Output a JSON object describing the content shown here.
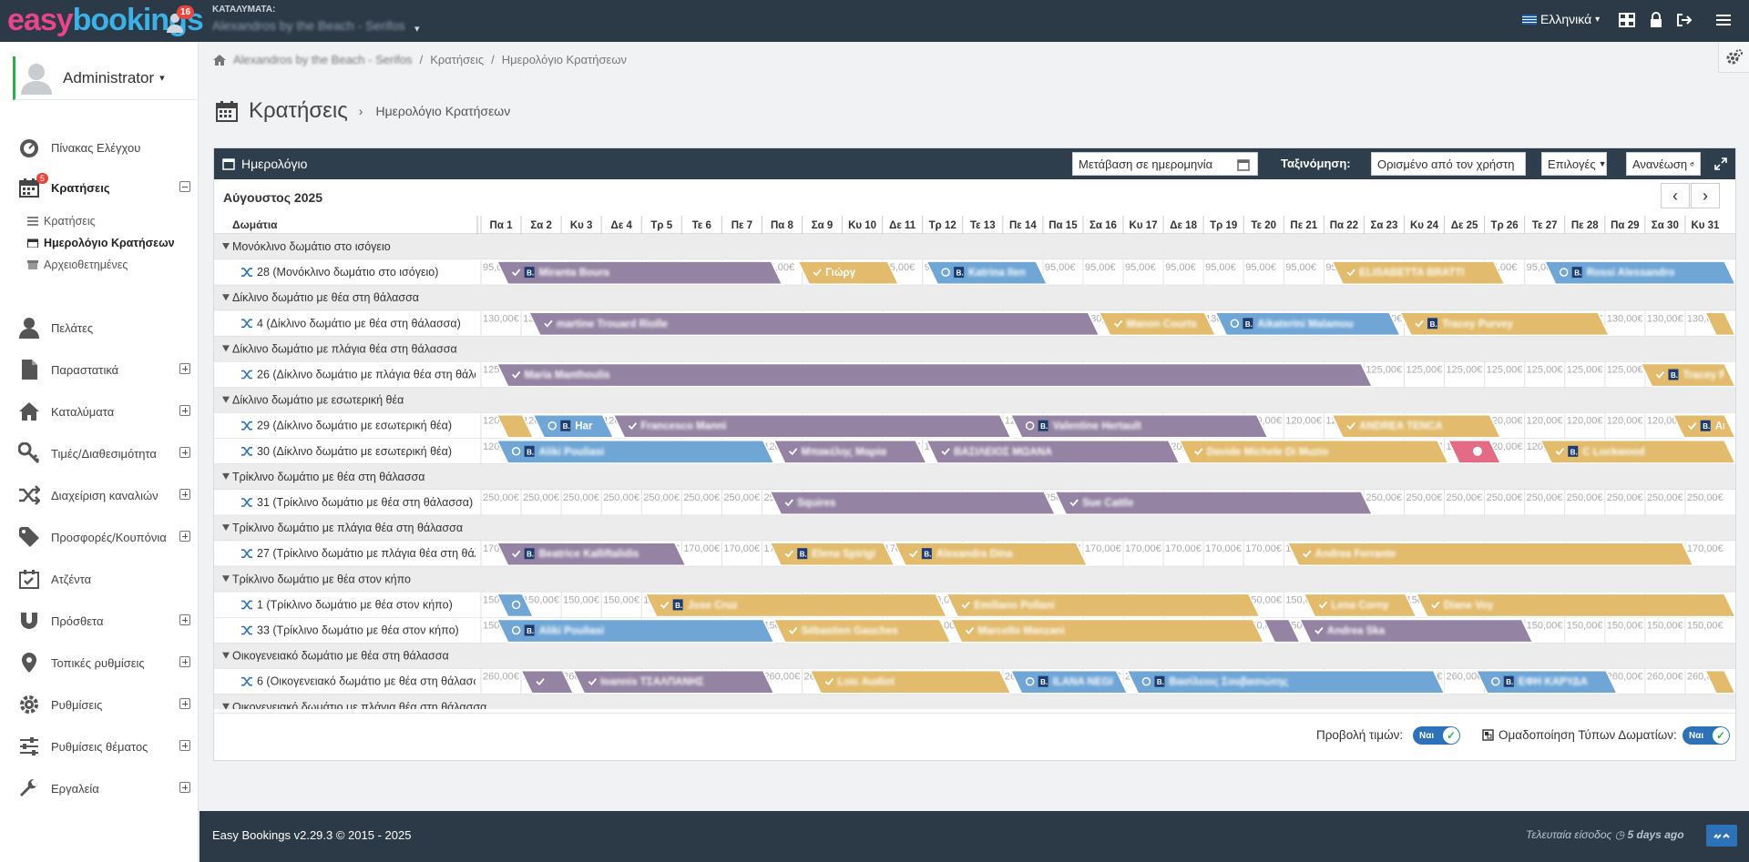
{
  "topbar": {
    "notifications": "16",
    "property_label": "ΚΑΤΑΛΥΜΑΤΑ:",
    "property_name": "Alexandros by the Beach - Serifos",
    "language": "Ελληνικά"
  },
  "sidebar": {
    "user": "Administrator",
    "items": [
      {
        "label": "Πίνακας Ελέγχου",
        "icon": "dashboard-icon"
      },
      {
        "label": "Κρατήσεις",
        "icon": "calendar-icon",
        "badge": "5"
      },
      {
        "label": "Πελάτες",
        "icon": "user-icon"
      },
      {
        "label": "Παραστατικά",
        "icon": "file-icon"
      },
      {
        "label": "Καταλύματα",
        "icon": "home-icon"
      },
      {
        "label": "Τιμές/Διαθεσιμότητα",
        "icon": "key-icon"
      },
      {
        "label": "Διαχείριση καναλιών",
        "icon": "shuffle-icon"
      },
      {
        "label": "Προσφορές/Κουπόνια",
        "icon": "tag-icon"
      },
      {
        "label": "Ατζέντα",
        "icon": "calendar-check-icon"
      },
      {
        "label": "Πρόσθετα",
        "icon": "magnet-icon"
      },
      {
        "label": "Τοπικές ρυθμίσεις",
        "icon": "map-marker-icon"
      },
      {
        "label": "Ρυθμίσεις",
        "icon": "gear-icon"
      },
      {
        "label": "Ρυθμίσεις θέματος",
        "icon": "sliders-icon"
      },
      {
        "label": "Εργαλεία",
        "icon": "wrench-icon"
      }
    ],
    "subitems": [
      "Κρατήσεις",
      "Ημερολόγιο Κρατήσεων",
      "Αρχειοθετημένες"
    ]
  },
  "breadcrumb": [
    "Alexandros by the Beach - Serifos",
    "Κρατήσεις",
    "Ημερολόγιο Κρατήσεων"
  ],
  "heading": {
    "title": "Κρατήσεις",
    "subtitle": "Ημερολόγιο Κρατήσεων"
  },
  "panel": {
    "title": "Ημερολόγιο",
    "goto_date": "Μετάβαση σε ημερομηνία",
    "sort_label": "Ταξινόμηση:",
    "sort_value": "Ορισμένο από τον χρήστη",
    "options": "Επιλογές",
    "refresh": "Ανανέωση",
    "month": "Αύγουστος 2025",
    "rooms_header": "Δωμάτια"
  },
  "days": [
    "Πα 1",
    "Σα 2",
    "Κυ 3",
    "Δε 4",
    "Τρ 5",
    "Τε 6",
    "Πε 7",
    "Πα 8",
    "Σα 9",
    "Κυ 10",
    "Δε 11",
    "Τρ 12",
    "Τε 13",
    "Πε 14",
    "Πα 15",
    "Σα 16",
    "Κυ 17",
    "Δε 18",
    "Τρ 19",
    "Τε 20",
    "Πε 21",
    "Πα 22",
    "Σα 23",
    "Κυ 24",
    "Δε 25",
    "Τρ 26",
    "Τε 27",
    "Πε 28",
    "Πα 29",
    "Σα 30",
    "Κυ 31"
  ],
  "rows": [
    {
      "type": "group",
      "label": "Μονόκλινο δωμάτιο στο ισόγειο"
    },
    {
      "type": "room",
      "label": "28 (Μονόκλινο δωμάτιο στο ισόγειο)",
      "price": "95,00€",
      "bookings": [
        {
          "start": 0.4,
          "end": 7.5,
          "color": "#9483a3",
          "label": "Miranta Boura",
          "b": true,
          "blur": true
        },
        {
          "start": 7.9,
          "end": 10.4,
          "color": "#e2bb6c",
          "label": "Γιώργ"
        },
        {
          "start": 11.1,
          "end": 14.1,
          "color": "#6fa6d6",
          "label": "Katrina Ilen",
          "b": true,
          "clock": true,
          "blur": true
        },
        {
          "start": 21.2,
          "end": 25.5,
          "color": "#e2bb6c",
          "label": "ELISABETTA BRATTI",
          "blur": true
        },
        {
          "start": 26.5,
          "end": 31.8,
          "color": "#6fa6d6",
          "label": "Rossi Alessandro",
          "b": true,
          "clock": true,
          "blur": true
        }
      ]
    },
    {
      "type": "group",
      "label": "Δίκλινο δωμάτιο με θέα στη θάλασσα"
    },
    {
      "type": "room",
      "label": "4 (Δίκλινο δωμάτιο με θέα στη θάλασσα)",
      "price": "130,00€",
      "bookings": [
        {
          "start": 1.2,
          "end": 15.4,
          "color": "#9483a3",
          "label": "martine Trouard Riolle",
          "blur": true
        },
        {
          "start": 15.4,
          "end": 18.3,
          "color": "#e2bb6c",
          "label": "Manon Courts",
          "blur": true
        },
        {
          "start": 18.3,
          "end": 22.9,
          "color": "#6fa6d6",
          "label": "Aikaterini Malamou",
          "b": true,
          "clock": true,
          "blur": true
        },
        {
          "start": 22.9,
          "end": 28.1,
          "color": "#e2bb6c",
          "label": "Tracey Purvey",
          "b": true,
          "blur": true
        },
        {
          "start": 30.5,
          "end": 31.8,
          "color": "#e2bb6c",
          "label": ""
        }
      ]
    },
    {
      "type": "group",
      "label": "Δίκλινο δωμάτιο με πλάγια θέα στη θάλασσα"
    },
    {
      "type": "room",
      "label": "26 (Δίκλινο δωμάτιο με πλάγια θέα στη θάλασσα)",
      "price": "125,00€",
      "bookings": [
        {
          "start": 0.4,
          "end": 22.2,
          "color": "#9483a3",
          "label": "Maria Manthoulis",
          "blur": true
        },
        {
          "start": 28.9,
          "end": 31.8,
          "color": "#e2bb6c",
          "label": "Tracey Purvey",
          "b": true,
          "blur": true
        }
      ]
    },
    {
      "type": "group",
      "label": "Δίκλινο δωμάτιο με εσωτερική θέα"
    },
    {
      "type": "room",
      "label": "29 (Δίκλινο δωμάτιο με εσωτερική θέα)",
      "price": "120,00€",
      "bookings": [
        {
          "start": 0.4,
          "end": 1.3,
          "color": "#e2bb6c",
          "label": ""
        },
        {
          "start": 1.3,
          "end": 3.3,
          "color": "#6fa6d6",
          "label": "Har",
          "b": true,
          "clock": true
        },
        {
          "start": 3.3,
          "end": 13.2,
          "color": "#9483a3",
          "label": "Francesco Manni",
          "blur": true
        },
        {
          "start": 13.2,
          "end": 19.6,
          "color": "#9483a3",
          "label": "Valentine Hertault",
          "b": true,
          "clock": true,
          "blur": true
        },
        {
          "start": 21.2,
          "end": 25.4,
          "color": "#e2bb6c",
          "label": "ANDREA TENCA",
          "blur": true
        },
        {
          "start": 29.7,
          "end": 31.8,
          "color": "#e2bb6c",
          "label": "Amoo",
          "b": true
        }
      ]
    },
    {
      "type": "room",
      "label": "30 (Δίκλινο δωμάτιο με εσωτερική θέα)",
      "price": "120,00€",
      "bookings": [
        {
          "start": 0.4,
          "end": 7.3,
          "color": "#6fa6d6",
          "label": "Aliki Pouliasi",
          "b": true,
          "clock": true,
          "blur": true
        },
        {
          "start": 7.3,
          "end": 11.1,
          "color": "#9483a3",
          "label": "Μπακέλης Μαρία",
          "blur": true
        },
        {
          "start": 11.1,
          "end": 17.4,
          "color": "#9483a3",
          "label": "ΒΑΣΙΛΕΙΟΣ ΜΩΑΝΑ",
          "blur": true
        },
        {
          "start": 17.4,
          "end": 24.1,
          "color": "#e2bb6c",
          "label": "Davide Michele Di Muzio",
          "blur": true
        },
        {
          "start": 24.1,
          "end": 25.4,
          "color": "#e46b86",
          "label": "",
          "cancel": true
        },
        {
          "start": 26.4,
          "end": 31.8,
          "color": "#e2bb6c",
          "label": "C Lockwood",
          "b": true,
          "blur": true
        }
      ]
    },
    {
      "type": "group",
      "label": "Τρίκλινο δωμάτιο με θέα στη θάλασσα"
    },
    {
      "type": "room",
      "label": "31 (Τρίκλινο δωμάτιο με θέα στη θάλασσα)",
      "price": "250,00€",
      "bookings": [
        {
          "start": 7.2,
          "end": 14.3,
          "color": "#9483a3",
          "label": "Squires",
          "blur": true
        },
        {
          "start": 14.3,
          "end": 22.2,
          "color": "#9483a3",
          "label": "Sue Cattle",
          "blur": true
        }
      ]
    },
    {
      "type": "group",
      "label": "Τρίκλινο δωμάτιο με πλάγια θέα στη θάλασσα"
    },
    {
      "type": "room",
      "label": "27 (Τρίκλινο δωμάτιο με πλάγια θέα στη θάλασσα)",
      "price": "170,00€",
      "bookings": [
        {
          "start": 0.4,
          "end": 5.1,
          "color": "#9483a3",
          "label": "Beatrice Kalliftalidis",
          "b": true,
          "blur": true
        },
        {
          "start": 7.2,
          "end": 10.3,
          "color": "#e2bb6c",
          "label": "Elena Spirigi",
          "b": true,
          "blur": true
        },
        {
          "start": 10.3,
          "end": 15.1,
          "color": "#e2bb6c",
          "label": "Alexandra Dina",
          "b": true,
          "blur": true
        },
        {
          "start": 20.1,
          "end": 30.2,
          "color": "#e2bb6c",
          "label": "Andrea Ferrante",
          "blur": true
        }
      ]
    },
    {
      "type": "group",
      "label": "Τρίκλινο δωμάτιο με θέα στον κήπο"
    },
    {
      "type": "room",
      "label": "1 (Τρίκλινο δωμάτιο με θέα στον κήπο)",
      "price": "150,00€",
      "bookings": [
        {
          "start": 0.4,
          "end": 1.3,
          "color": "#6fa6d6",
          "label": "",
          "clock": true
        },
        {
          "start": 4.1,
          "end": 11.6,
          "color": "#e2bb6c",
          "label": "Jose Cruz",
          "b": true,
          "blur": true
        },
        {
          "start": 11.6,
          "end": 19.4,
          "color": "#e2bb6c",
          "label": "Emiliano Pollani",
          "blur": true
        },
        {
          "start": 20.5,
          "end": 23.3,
          "color": "#e2bb6c",
          "label": "Lena Corny",
          "blur": true
        },
        {
          "start": 23.3,
          "end": 31.8,
          "color": "#e2bb6c",
          "label": "Diane Voy",
          "blur": true
        }
      ]
    },
    {
      "type": "room",
      "label": "33 (Τρίκλινο δωμάτιο με θέα στον κήπο)",
      "price": "150,00€",
      "bookings": [
        {
          "start": 0.4,
          "end": 7.3,
          "color": "#6fa6d6",
          "label": "Aliki Pouliasi",
          "b": true,
          "clock": true,
          "blur": true
        },
        {
          "start": 7.3,
          "end": 11.7,
          "color": "#e2bb6c",
          "label": "Sébastien Gauches",
          "blur": true
        },
        {
          "start": 11.7,
          "end": 19.5,
          "color": "#e2bb6c",
          "label": "Marcello Manzani",
          "blur": true
        },
        {
          "start": 19.5,
          "end": 20.4,
          "color": "#9483a3",
          "label": ""
        },
        {
          "start": 20.4,
          "end": 26.2,
          "color": "#9483a3",
          "label": "Andrea Ska",
          "blur": true
        }
      ]
    },
    {
      "type": "group",
      "label": "Οικογενειακό δωμάτιο με θέα στη θάλασσα"
    },
    {
      "type": "room",
      "label": "6 (Οικογενειακό δωμάτιο με θέα στη θάλασσα)",
      "price": "260,00€",
      "bookings": [
        {
          "start": 1.0,
          "end": 2.3,
          "color": "#9483a3",
          "label": ""
        },
        {
          "start": 2.3,
          "end": 7.3,
          "color": "#9483a3",
          "label": "Ioannis ΤΣΑΛΠΑΝΗΣ",
          "blur": true
        },
        {
          "start": 8.2,
          "end": 13.2,
          "color": "#e2bb6c",
          "label": "Loic Audiot",
          "blur": true
        },
        {
          "start": 13.2,
          "end": 16.1,
          "color": "#6fa6d6",
          "label": "ILANA NEGI",
          "b": true,
          "clock": true,
          "blur": true
        },
        {
          "start": 16.1,
          "end": 24.0,
          "color": "#6fa6d6",
          "label": "Βασίλειος Σουβασιώτης",
          "b": true,
          "clock": true,
          "blur": true
        },
        {
          "start": 24.8,
          "end": 28.3,
          "color": "#6fa6d6",
          "label": "ΕΦΗ ΚΑΡΥΔΑ",
          "b": true,
          "clock": true,
          "blur": true
        },
        {
          "start": 30.5,
          "end": 31.8,
          "color": "#e2bb6c",
          "label": ""
        }
      ]
    },
    {
      "type": "group",
      "label": "Οικογενειακό δωμάτιο με πλάγια θέα στη θάλασσα"
    }
  ],
  "footer_toggles": {
    "prices_label": "Προβολή τιμών:",
    "grouping_label": "Ομαδοποίηση Τύπων Δωματίων:",
    "yes": "Ναι"
  },
  "page_footer": {
    "version": "Easy Bookings v2.29.3 © 2015 - 2025",
    "last_login_label": "Τελευταία είσοδος",
    "last_login_value": "5 days ago"
  }
}
